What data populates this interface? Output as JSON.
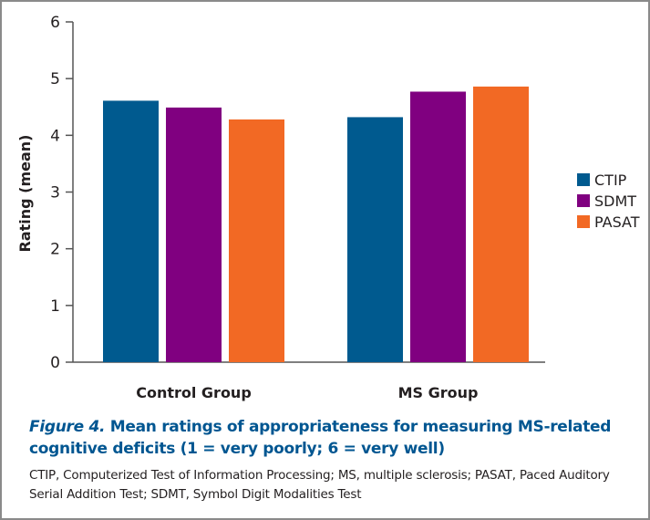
{
  "colors": {
    "CTIP": "#005a8f",
    "SDMT": "#800080",
    "PASAT": "#f26924",
    "caption": "#005691",
    "axis": "#555555"
  },
  "chart_data": {
    "type": "bar",
    "title": "Mean ratings of appropriateness for measuring MS-related cognitive deficits (1 = very poorly; 6 = very well)",
    "xlabel": "",
    "ylabel": "Rating (mean)",
    "ylim": [
      0,
      6
    ],
    "yticks": [
      0,
      1,
      2,
      3,
      4,
      5,
      6
    ],
    "grid": false,
    "legend_position": "right",
    "categories": [
      "Control Group",
      "MS Group"
    ],
    "series": [
      {
        "name": "CTIP",
        "values": [
          4.61,
          4.32
        ]
      },
      {
        "name": "SDMT",
        "values": [
          4.49,
          4.77
        ]
      },
      {
        "name": "PASAT",
        "values": [
          4.28,
          4.86
        ]
      }
    ]
  },
  "caption": {
    "figure_label": "Figure 4.",
    "text": " Mean ratings of appropriateness for measuring MS-related cognitive deficits (1 = very poorly; 6 = very well)"
  },
  "footnote": "CTIP, Computerized Test of Information Processing; MS, multiple sclerosis; PASAT, Paced Auditory Serial Addition Test; SDMT, Symbol Digit Modalities Test"
}
